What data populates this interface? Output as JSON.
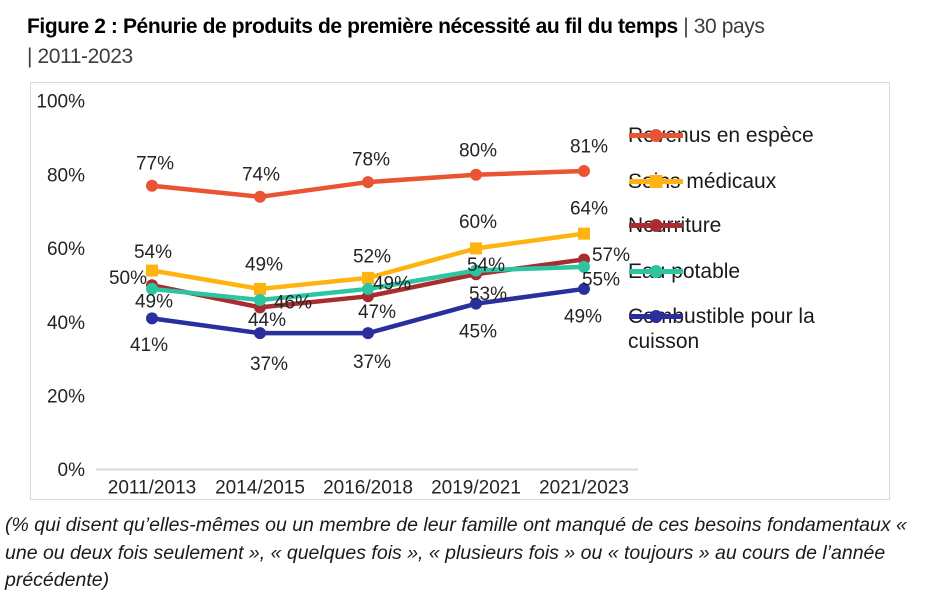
{
  "title": {
    "bold": "Figure 2 : Pénurie de produits de première nécessité au fil du temps",
    "suffix": " | 30 pays",
    "line2": "| 2011-2023"
  },
  "footnote": "(% qui disent qu’elles-mêmes ou un membre de leur famille ont manqué de ces besoins fondamentaux « une ou deux fois seulement », « quelques fois », « plusieurs fois » ou « toujours » au cours de l’année précédente)",
  "chart_data": {
    "type": "line",
    "categories": [
      "2011/2013",
      "2014/2015",
      "2016/2018",
      "2019/2021",
      "2021/2023"
    ],
    "series": [
      {
        "name": "Revenus en espèce",
        "color": "#E95432",
        "marker": "circle",
        "values": [
          77,
          74,
          78,
          80,
          81
        ]
      },
      {
        "name": "Soins médicaux",
        "color": "#FFB30F",
        "marker": "square",
        "values": [
          54,
          49,
          52,
          60,
          64
        ]
      },
      {
        "name": "Nourriture",
        "color": "#A82C30",
        "marker": "circle",
        "values": [
          50,
          44,
          47,
          53,
          57
        ]
      },
      {
        "name": "Eau potable",
        "color": "#2CC5A2",
        "marker": "circle",
        "values": [
          49,
          46,
          49,
          54,
          55
        ]
      },
      {
        "name": "Combustible pour la cuisson",
        "color": "#2B2F9E",
        "marker": "circle",
        "values": [
          41,
          37,
          37,
          45,
          49
        ]
      }
    ],
    "unit": "%",
    "y_axis": {
      "min": 0,
      "max": 100,
      "ticks": [
        {
          "label": "100%",
          "value": 100
        },
        {
          "label": "80%",
          "value": 80
        },
        {
          "label": "60%",
          "value": 60
        },
        {
          "label": "40%",
          "value": 40
        },
        {
          "label": "20%",
          "value": 20
        },
        {
          "label": "0%",
          "value": 0
        }
      ]
    },
    "grid": false,
    "data_labels": true,
    "legend_position": "right",
    "axis_line_color": "#d9d9d9",
    "layout_hints": {
      "label_offsets": [
        [
          [
            3,
            -23
          ],
          [
            1,
            -23
          ],
          [
            3,
            -23
          ],
          [
            2,
            -25
          ],
          [
            5,
            -25
          ]
        ],
        [
          [
            1,
            -19
          ],
          [
            4,
            -25
          ],
          [
            4,
            -22
          ],
          [
            2,
            -27
          ],
          [
            5,
            -26
          ]
        ],
        [
          [
            -24,
            -8
          ],
          [
            7,
            12
          ],
          [
            9,
            15
          ],
          [
            12,
            19
          ],
          [
            27,
            -5
          ]
        ],
        [
          [
            2,
            12
          ],
          [
            33,
            2
          ],
          [
            24,
            -6
          ],
          [
            10,
            -6
          ],
          [
            17,
            12
          ]
        ],
        [
          [
            -3,
            26
          ],
          [
            9,
            30
          ],
          [
            4,
            28
          ],
          [
            2,
            27
          ],
          [
            -1,
            27
          ]
        ]
      ]
    }
  }
}
